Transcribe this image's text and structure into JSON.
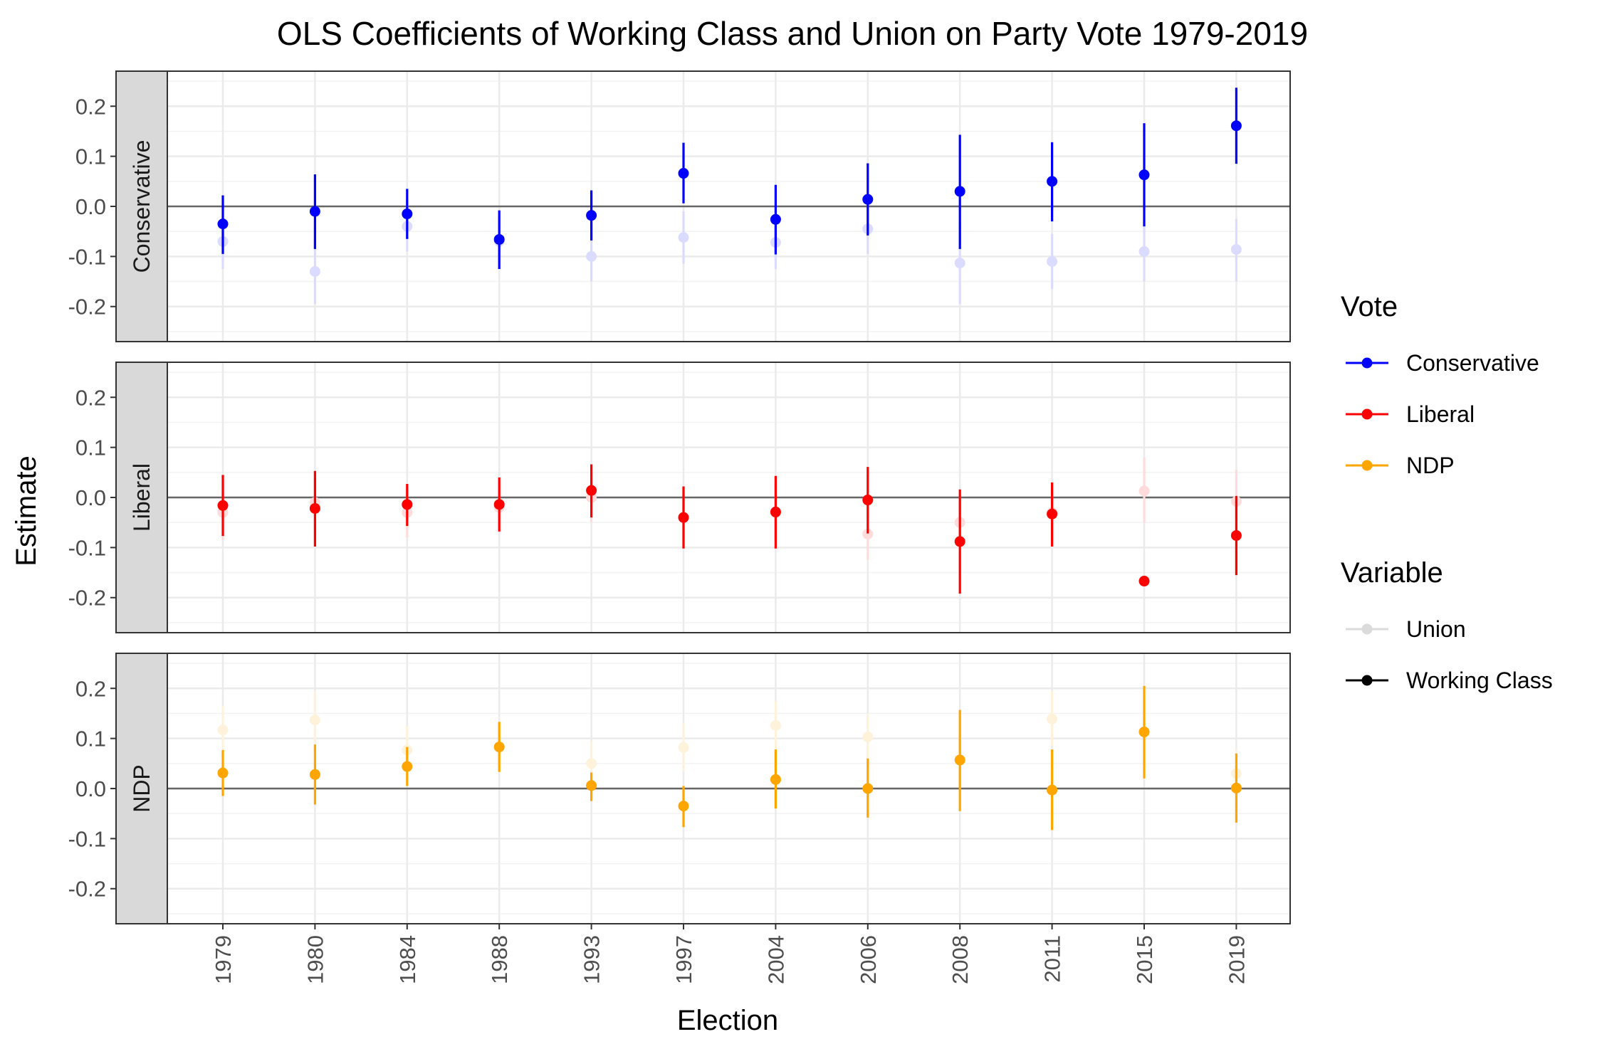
{
  "chart_data": {
    "type": "scatter",
    "title": "OLS Coefficients of Working Class and Union on Party Vote 1979-2019",
    "xlabel": "Election",
    "ylabel": "Estimate",
    "categories": [
      "1979",
      "1980",
      "1984",
      "1988",
      "1993",
      "1997",
      "2004",
      "2006",
      "2008",
      "2011",
      "2015",
      "2019"
    ],
    "ylim": [
      -0.27,
      0.27
    ],
    "yticks": [
      -0.2,
      -0.1,
      0.0,
      0.1,
      0.2
    ],
    "ytick_labels": [
      "-0.2",
      "-0.1",
      "0.0",
      "0.1",
      "0.2"
    ],
    "reference_line": 0,
    "grid": true,
    "colors": {
      "Conservative": "#0000ff",
      "Liberal": "#ff0000",
      "NDP": "#ffa500"
    },
    "legend": {
      "position": "right",
      "vote_title": "Vote",
      "vote_items": [
        "Conservative",
        "Liberal",
        "NDP"
      ],
      "variable_title": "Variable",
      "variable_items": [
        "Union",
        "Working Class"
      ]
    },
    "panels": [
      {
        "name": "Conservative",
        "series": [
          {
            "name": "Working Class",
            "values": [
              -0.035,
              -0.01,
              -0.015,
              -0.066,
              -0.018,
              0.066,
              -0.026,
              0.014,
              0.03,
              0.05,
              0.063,
              0.161
            ],
            "lower": [
              -0.095,
              -0.085,
              -0.065,
              -0.125,
              -0.068,
              0.006,
              -0.096,
              -0.058,
              -0.085,
              -0.03,
              -0.04,
              0.085
            ],
            "upper": [
              0.022,
              0.064,
              0.035,
              -0.008,
              0.032,
              0.127,
              0.043,
              0.086,
              0.143,
              0.128,
              0.166,
              0.237
            ]
          },
          {
            "name": "Union",
            "values": [
              -0.07,
              -0.13,
              -0.04,
              -0.07,
              -0.1,
              -0.062,
              -0.072,
              -0.045,
              -0.113,
              -0.11,
              -0.09,
              -0.086
            ],
            "lower": [
              -0.125,
              -0.195,
              -0.09,
              -0.12,
              -0.15,
              -0.115,
              -0.125,
              -0.095,
              -0.195,
              -0.165,
              -0.15,
              -0.15
            ],
            "upper": [
              -0.015,
              -0.065,
              0.01,
              -0.02,
              -0.05,
              -0.01,
              -0.02,
              0.005,
              -0.03,
              -0.055,
              -0.03,
              -0.025
            ]
          }
        ]
      },
      {
        "name": "Liberal",
        "series": [
          {
            "name": "Working Class",
            "values": [
              -0.016,
              -0.022,
              -0.014,
              -0.014,
              0.014,
              -0.04,
              -0.029,
              -0.005,
              -0.088,
              -0.033,
              -0.167,
              -0.076
            ],
            "lower": [
              -0.077,
              -0.098,
              -0.057,
              -0.068,
              -0.04,
              -0.102,
              -0.102,
              -0.072,
              -0.192,
              -0.098,
              null,
              -0.155
            ],
            "upper": [
              0.045,
              0.053,
              0.027,
              0.04,
              0.066,
              0.022,
              0.043,
              0.061,
              0.016,
              0.03,
              null,
              0.003
            ]
          },
          {
            "name": "Union",
            "values": [
              -0.03,
              -0.01,
              -0.03,
              -0.02,
              0.0,
              -0.04,
              -0.03,
              -0.073,
              -0.05,
              -0.03,
              0.013,
              -0.008
            ],
            "lower": [
              -0.085,
              -0.07,
              -0.08,
              -0.07,
              -0.05,
              -0.095,
              -0.085,
              -0.125,
              -0.105,
              -0.085,
              -0.05,
              -0.07
            ],
            "upper": [
              0.025,
              0.05,
              0.02,
              0.03,
              0.05,
              0.015,
              0.025,
              -0.02,
              0.005,
              0.025,
              0.08,
              0.055
            ]
          }
        ]
      },
      {
        "name": "NDP",
        "series": [
          {
            "name": "Working Class",
            "values": [
              0.031,
              0.028,
              0.044,
              0.083,
              0.006,
              -0.035,
              0.018,
              0.0,
              0.057,
              -0.003,
              0.113,
              0.001
            ],
            "lower": [
              -0.015,
              -0.032,
              0.005,
              0.033,
              -0.025,
              -0.077,
              -0.04,
              -0.058,
              -0.045,
              -0.083,
              0.02,
              -0.068
            ],
            "upper": [
              0.077,
              0.088,
              0.083,
              0.133,
              0.032,
              0.005,
              0.078,
              0.06,
              0.157,
              0.078,
              0.205,
              0.07
            ]
          },
          {
            "name": "Union",
            "values": [
              0.117,
              0.137,
              0.077,
              0.083,
              0.05,
              0.082,
              0.126,
              0.103,
              0.057,
              0.139,
              0.113,
              0.03
            ],
            "lower": [
              0.07,
              0.08,
              0.03,
              0.035,
              0.005,
              0.035,
              0.075,
              0.055,
              0.0,
              0.085,
              0.05,
              -0.02
            ],
            "upper": [
              0.165,
              0.195,
              0.125,
              0.13,
              0.095,
              0.13,
              0.175,
              0.15,
              0.11,
              0.195,
              0.175,
              0.08
            ]
          }
        ]
      }
    ]
  }
}
